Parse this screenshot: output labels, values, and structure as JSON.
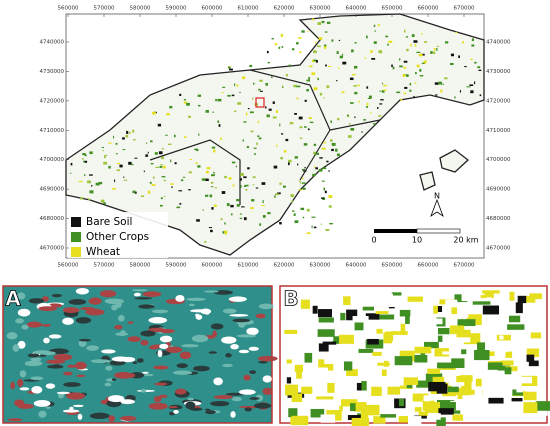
{
  "map": {
    "xticks": [
      560000,
      570000,
      580000,
      590000,
      600000,
      610000,
      620000,
      630000,
      640000,
      650000,
      660000,
      670000
    ],
    "yticks": [
      4740000,
      4730000,
      4720000,
      4710000,
      4700000,
      4690000,
      4680000,
      4670000
    ],
    "legend": [
      {
        "label": "Bare Soil",
        "color": "#111111"
      },
      {
        "label": "Other Crops",
        "color": "#3f8f22"
      },
      {
        "label": "Wheat",
        "color": "#e6df1e"
      }
    ],
    "north": "N",
    "scale_bar": [
      "0",
      "10",
      "20 km"
    ],
    "insets": [
      "A",
      "B"
    ]
  }
}
